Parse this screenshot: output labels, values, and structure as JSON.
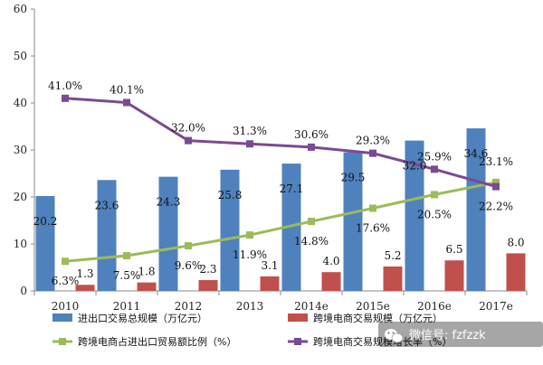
{
  "chart_data": {
    "type": "bar",
    "categories": [
      "2010",
      "2011",
      "2012",
      "2013",
      "2014e",
      "2015e",
      "2016e",
      "2017e"
    ],
    "ylim": [
      0,
      60
    ],
    "yticks": [
      0,
      10,
      20,
      30,
      40,
      50,
      60
    ],
    "grid": false,
    "legend_position": "bottom",
    "series": [
      {
        "name": "进出口交易总规模（万亿元）",
        "kind": "bar",
        "color": "#4f81bd",
        "values": [
          20.2,
          23.6,
          24.3,
          25.8,
          27.1,
          29.5,
          32.0,
          34.6
        ],
        "labels": [
          "20.2",
          "23.6",
          "24.3",
          "25.8",
          "27.1",
          "29.5",
          "32.0",
          "34.6"
        ]
      },
      {
        "name": "跨境电商交易规模（万亿元）",
        "kind": "bar",
        "color": "#c0504d",
        "values": [
          1.3,
          1.8,
          2.3,
          3.1,
          4.0,
          5.2,
          6.5,
          8.0
        ],
        "labels": [
          "1.3",
          "1.8",
          "2.3",
          "3.1",
          "4.0",
          "5.2",
          "6.5",
          "8.0"
        ]
      },
      {
        "name": "跨境电商占进出口贸易额比例（%）",
        "kind": "line",
        "color": "#9bbb59",
        "values": [
          6.3,
          7.5,
          9.6,
          11.9,
          14.8,
          17.6,
          20.5,
          23.1
        ],
        "labels": [
          "6.3%",
          "7.5%",
          "9.6%",
          "11.9%",
          "14.8%",
          "17.6%",
          "20.5%",
          "23.1%"
        ]
      },
      {
        "name": "跨境电商交易规模增长率（%）",
        "kind": "line",
        "color": "#7a4a93",
        "values": [
          41.0,
          40.1,
          32.0,
          31.3,
          30.6,
          29.3,
          25.9,
          22.2
        ],
        "labels": [
          "41.0%",
          "40.1%",
          "32.0%",
          "31.3%",
          "30.6%",
          "29.3%",
          "25.9%",
          "22.2%"
        ]
      }
    ]
  },
  "watermark": {
    "text": "微信号: fzfzzk",
    "icon": "wechat-icon"
  }
}
